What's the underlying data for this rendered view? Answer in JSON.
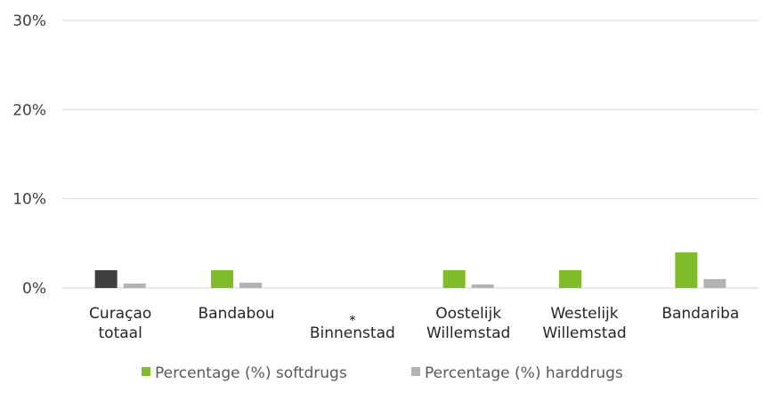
{
  "chart_data": {
    "type": "bar",
    "categories": [
      [
        "Curaçao",
        "totaal"
      ],
      [
        "Bandabou"
      ],
      [
        "",
        "Binnenstad"
      ],
      [
        "Oostelijk",
        "Willemstad"
      ],
      [
        "Westelijk",
        "Willemstad"
      ],
      [
        "Bandariba"
      ]
    ],
    "series": [
      {
        "name": "Percentage (%) softdrugs",
        "color": "#80bb2c",
        "values": [
          2,
          2,
          null,
          2,
          2,
          4
        ]
      },
      {
        "name": "Percentage (%) harddrugs",
        "color": "#b3b3b3",
        "values": [
          0.5,
          0.6,
          null,
          0.4,
          0,
          1.0
        ]
      }
    ],
    "highlight": {
      "category_index": 0,
      "series_index": 0,
      "color": "#3f3f3f"
    },
    "annotation": {
      "category_index": 2,
      "text": "*"
    },
    "yticks": [
      "0%",
      "10%",
      "20%",
      "30%"
    ],
    "ylim": [
      0,
      30
    ],
    "grid": true,
    "legend_position": "bottom"
  }
}
